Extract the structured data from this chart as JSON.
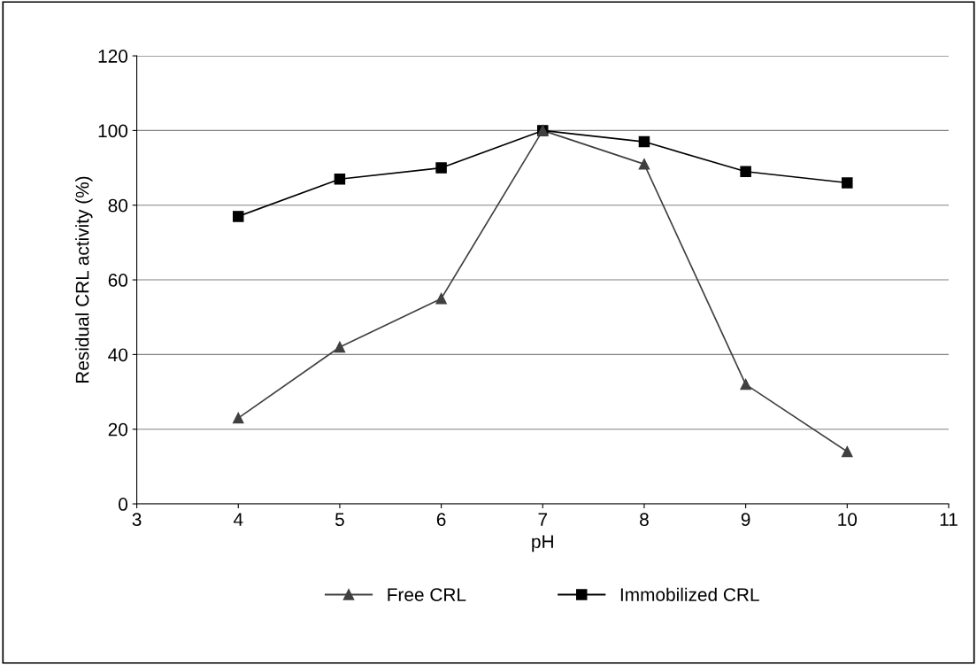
{
  "chart_data": {
    "type": "line",
    "xlabel": "pH",
    "ylabel": "Residual CRL activity (%)",
    "x": [
      4,
      5,
      6,
      7,
      8,
      9,
      10
    ],
    "series": [
      {
        "name": "Free CRL",
        "color": "#404040",
        "marker": "triangle",
        "values": [
          23,
          42,
          55,
          100,
          91,
          32,
          14
        ]
      },
      {
        "name": "Immobilized CRL",
        "color": "#000000",
        "marker": "square",
        "values": [
          77,
          87,
          90,
          100,
          97,
          89,
          86
        ]
      }
    ],
    "xlim": [
      3,
      11
    ],
    "xticks": [
      3,
      4,
      5,
      6,
      7,
      8,
      9,
      10,
      11
    ],
    "ylim": [
      0,
      120
    ],
    "yticks": [
      0,
      20,
      40,
      60,
      80,
      100,
      120
    ],
    "grid": "y",
    "legend": "bottom",
    "line_style": "solid"
  }
}
